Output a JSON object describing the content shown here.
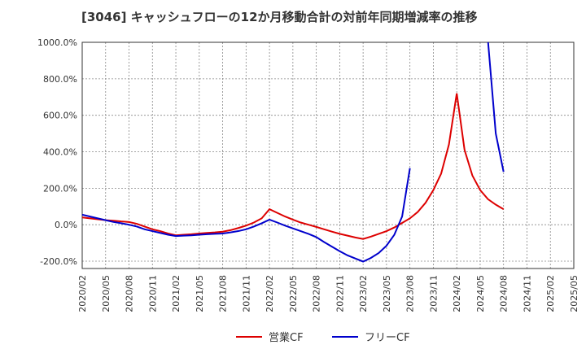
{
  "chart_data": {
    "type": "line",
    "title": "[3046]  キャッシュフローの12か月移動合計の対前年同期増減率の推移",
    "x": [
      "2020/02",
      "2020/03",
      "2020/04",
      "2020/05",
      "2020/06",
      "2020/07",
      "2020/08",
      "2020/09",
      "2020/10",
      "2020/11",
      "2020/12",
      "2021/01",
      "2021/02",
      "2021/03",
      "2021/04",
      "2021/05",
      "2021/06",
      "2021/07",
      "2021/08",
      "2021/09",
      "2021/10",
      "2021/11",
      "2021/12",
      "2022/01",
      "2022/02",
      "2022/03",
      "2022/04",
      "2022/05",
      "2022/06",
      "2022/07",
      "2022/08",
      "2022/09",
      "2022/10",
      "2022/11",
      "2022/12",
      "2023/01",
      "2023/02",
      "2023/03",
      "2023/04",
      "2023/05",
      "2023/06",
      "2023/07",
      "2023/08",
      "2023/09",
      "2023/10",
      "2023/11",
      "2023/12",
      "2024/01",
      "2024/02",
      "2024/03",
      "2024/04",
      "2024/05",
      "2024/06",
      "2024/07",
      "2024/08"
    ],
    "x_tick_labels": [
      "2020/02",
      "2020/05",
      "2020/08",
      "2020/11",
      "2021/02",
      "2021/05",
      "2021/08",
      "2021/11",
      "2022/02",
      "2022/05",
      "2022/08",
      "2022/11",
      "2023/02",
      "2023/05",
      "2023/08",
      "2023/11",
      "2024/02",
      "2024/05",
      "2024/08",
      "2024/11",
      "2025/02",
      "2025/05"
    ],
    "y_tick_labels": [
      "1000.0%",
      "800.0%",
      "600.0%",
      "400.0%",
      "200.0%",
      "0.0%",
      "-200.0%"
    ],
    "ylim": [
      -240,
      1000
    ],
    "y_ticks": [
      1000,
      800,
      600,
      400,
      200,
      0,
      -200
    ],
    "grid": true,
    "legend_position": "bottom",
    "series": [
      {
        "name": "営業CF",
        "color": "#dd0000",
        "values": [
          40,
          35,
          30,
          25,
          22,
          18,
          15,
          5,
          -10,
          -25,
          -35,
          -48,
          -58,
          -55,
          -52,
          -48,
          -45,
          -42,
          -38,
          -30,
          -18,
          -5,
          12,
          35,
          85,
          65,
          45,
          28,
          12,
          0,
          -12,
          -25,
          -38,
          -50,
          -60,
          -70,
          -78,
          -65,
          -50,
          -35,
          -15,
          10,
          35,
          70,
          120,
          190,
          280,
          440,
          720,
          410,
          270,
          190,
          140,
          110,
          85
        ]
      },
      {
        "name": "フリーCF",
        "color": "#0000cc",
        "values": [
          55,
          45,
          35,
          25,
          15,
          8,
          0,
          -10,
          -25,
          -35,
          -45,
          -55,
          -62,
          -60,
          -58,
          -55,
          -52,
          -50,
          -48,
          -42,
          -35,
          -25,
          -10,
          8,
          28,
          12,
          -5,
          -20,
          -35,
          -50,
          -68,
          -95,
          -120,
          -145,
          -168,
          -185,
          -202,
          -182,
          -155,
          -115,
          -55,
          45,
          310,
          null,
          null,
          null,
          null,
          null,
          null,
          null,
          null,
          null,
          1010,
          500,
          290
        ]
      }
    ]
  }
}
